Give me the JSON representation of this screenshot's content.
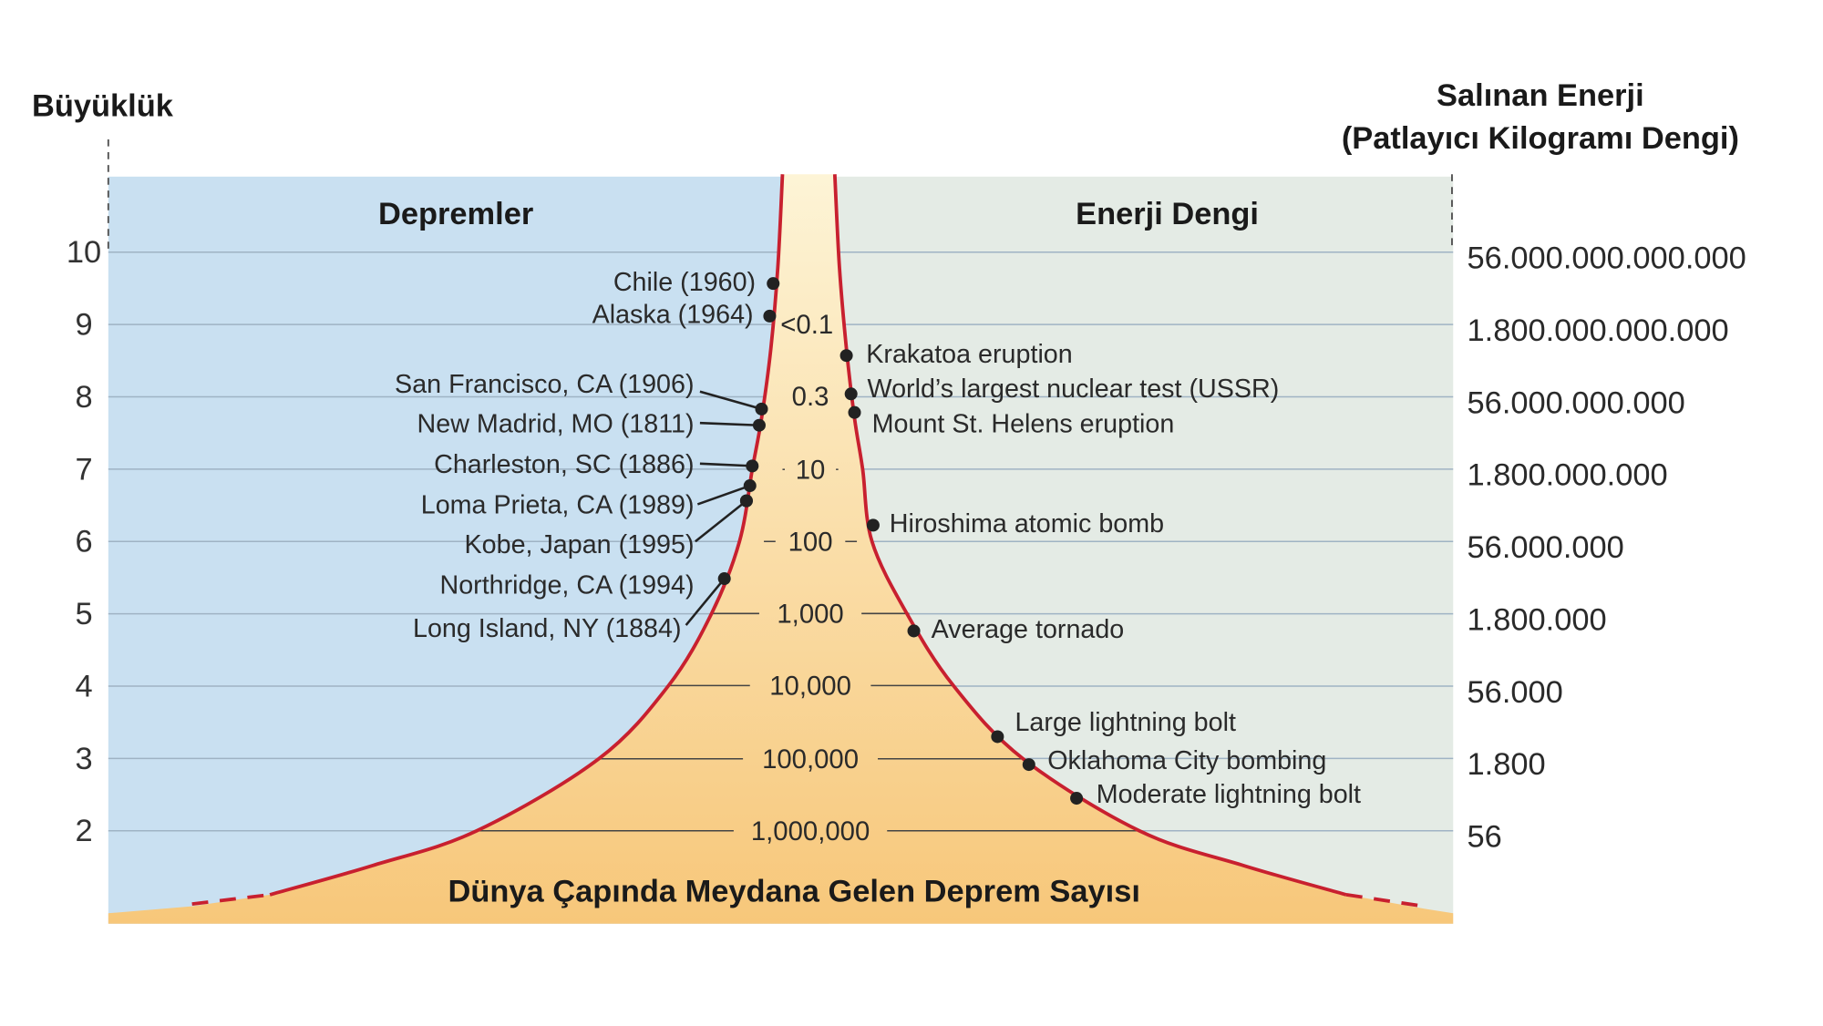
{
  "diagram": {
    "left_axis_title": "Büyüklük",
    "right_axis_title_line1": "Salınan Enerji",
    "right_axis_title_line2": "(Patlayıcı Kilogramı Dengi)",
    "left_panel_title": "Depremler",
    "right_panel_title": "Enerji Dengi",
    "bottom_title": "Dünya Çapında Meydana Gelen Deprem Sayısı",
    "colors": {
      "left_panel": "#c9e0f1",
      "right_panel": "#e4ebe5",
      "curve": "#c8202f",
      "fill_top": "#fdf4d6",
      "fill_bottom": "#f7c77a",
      "gridline": "#9fb3c4"
    },
    "magnitudes": [
      "10",
      "9",
      "8",
      "7",
      "6",
      "5",
      "4",
      "3",
      "2"
    ],
    "energy_labels": [
      "56.000.000.000.000",
      "1.800.000.000.000",
      "56.000.000.000",
      "1.800.000.000",
      "56.000.000",
      "1.800.000",
      "56.000",
      "1.800",
      "56"
    ],
    "annual_counts": [
      "<0.1",
      "0.3",
      "10",
      "100",
      "1,000",
      "10,000",
      "100,000",
      "1,000,000"
    ],
    "earthquakes": [
      "Chile (1960)",
      "Alaska (1964)",
      "San Francisco, CA (1906)",
      "New Madrid, MO (1811)",
      "Charleston, SC (1886)",
      "Loma Prieta, CA (1989)",
      "Kobe, Japan (1995)",
      "Northridge, CA (1994)",
      "Long Island, NY (1884)"
    ],
    "energy_events": [
      "Krakatoa eruption",
      "World’s largest nuclear test (USSR)",
      "Mount St. Helens eruption",
      "Hiroshima atomic bomb",
      "Average tornado",
      "Large lightning bolt",
      "Oklahoma City bombing",
      "Moderate lightning bolt"
    ]
  }
}
